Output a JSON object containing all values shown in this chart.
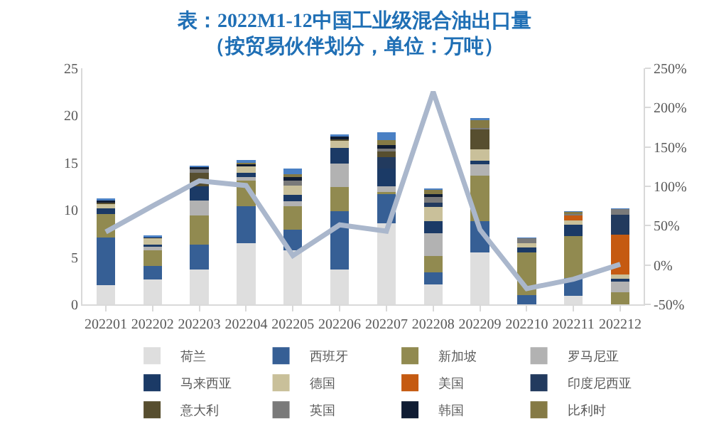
{
  "chart_data": {
    "type": "bar",
    "stacked": true,
    "title": "表：2022M1-12中国工业级混合油出口量",
    "subtitle": "（按贸易伙伴划分，单位：万吨）",
    "categories": [
      "202201",
      "202202",
      "202203",
      "202204",
      "202205",
      "202206",
      "202207",
      "202208",
      "202209",
      "202210",
      "202211",
      "202212"
    ],
    "series": [
      {
        "name": "荷兰",
        "color": "#dedede",
        "values": [
          2.0,
          2.6,
          3.7,
          6.5,
          5.7,
          3.7,
          8.6,
          2.1,
          5.5,
          0,
          0.9,
          0
        ]
      },
      {
        "name": "西班牙",
        "color": "#365f95",
        "values": [
          5.1,
          1.5,
          2.6,
          3.9,
          2.2,
          6.2,
          3.1,
          1.3,
          3.3,
          1.0,
          1.9,
          0
        ]
      },
      {
        "name": "新加坡",
        "color": "#918a50",
        "values": [
          2.5,
          1.6,
          3.1,
          2.7,
          2.5,
          2.5,
          0.2,
          1.7,
          4.8,
          4.5,
          4.4,
          1.3
        ]
      },
      {
        "name": "罗马尼亚",
        "color": "#b2b2b2",
        "values": [
          0,
          0.4,
          1.6,
          0.4,
          0.5,
          2.5,
          0.6,
          2.4,
          1.2,
          0,
          0,
          1.1
        ]
      },
      {
        "name": "马来西亚",
        "color": "#1b3a66",
        "values": [
          0.6,
          0.2,
          1.5,
          0.4,
          0.7,
          1.7,
          1.9,
          1.3,
          0.4,
          0.5,
          1.2,
          0.3
        ]
      },
      {
        "name": "德国",
        "color": "#c9c09a",
        "values": [
          0.4,
          0.7,
          null,
          0.7,
          1.0,
          0.7,
          0,
          1.5,
          1.2,
          0.5,
          0.5,
          0.5
        ]
      },
      {
        "name": "美国",
        "color": "#c55a11",
        "values": [
          0,
          0,
          0,
          0,
          0,
          0,
          0,
          0,
          0,
          0,
          0.5,
          4.2
        ]
      },
      {
        "name": "印度尼西亚",
        "color": "#223a5e",
        "values": [
          0,
          0,
          0,
          0,
          0,
          0,
          1.2,
          0.5,
          0,
          0,
          0,
          2.1
        ]
      },
      {
        "name": "意大利",
        "color": "#574e2f",
        "values": [
          0.2,
          0,
          1.4,
          0,
          0,
          0.2,
          0.6,
          0,
          2.1,
          0,
          0,
          0
        ]
      },
      {
        "name": "英国",
        "color": "#7a7a7a",
        "values": [
          0,
          0,
          0.4,
          0,
          0.5,
          0,
          0.3,
          0.6,
          0.2,
          0.5,
          0.2,
          0.6
        ]
      },
      {
        "name": "韩国",
        "color": "#0f1c33",
        "values": [
          0.2,
          0.1,
          0.2,
          0.2,
          0.4,
          0.3,
          0.4,
          0.3,
          0,
          0,
          0,
          0
        ]
      },
      {
        "name": "比利时",
        "color": "#857a45",
        "values": [
          0,
          0,
          0,
          0.2,
          0.3,
          0,
          0.5,
          0.4,
          0.8,
          0,
          0.2,
          0
        ]
      },
      {
        "color": "#4a80c4",
        "values": [
          0.2,
          0.2,
          0.2,
          0.3,
          0.6,
          0.2,
          0.8,
          0.2,
          0.2,
          0.1,
          0.1,
          0.1
        ]
      },
      {
        "type": "line",
        "axis": "y2",
        "color": "#aab7cc",
        "values": [
          42,
          75,
          107,
          101,
          12,
          51,
          43,
          220,
          45,
          -30,
          -18,
          1
        ]
      }
    ],
    "ylim": [
      0,
      25
    ],
    "yticks": [
      0,
      5,
      10,
      15,
      20,
      25
    ],
    "y2lim": [
      -50,
      250
    ],
    "y2ticks": [
      {
        "value": -50,
        "label": "-50%"
      },
      {
        "value": 0,
        "label": "0%"
      },
      {
        "value": 50,
        "label": "50%"
      },
      {
        "value": 100,
        "label": "100%"
      },
      {
        "value": 150,
        "label": "150%"
      },
      {
        "value": 200,
        "label": "200%"
      },
      {
        "value": 250,
        "label": "250%"
      }
    ],
    "legend": "bottom",
    "grid": false
  }
}
